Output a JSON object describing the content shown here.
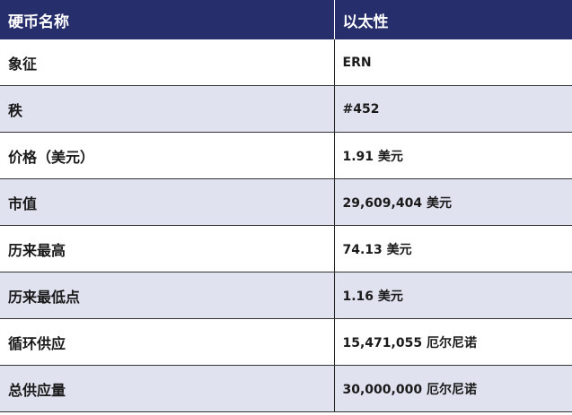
{
  "header": {
    "col1": "硬币名称",
    "col2": "以太性"
  },
  "rows": [
    {
      "label": "象征",
      "value": "ERN"
    },
    {
      "label": "秩",
      "value": "#452"
    },
    {
      "label": "价格（美元）",
      "value": "1.91 美元"
    },
    {
      "label": "市值",
      "value": "29,609,404 美元"
    },
    {
      "label": "历来最高",
      "value": "74.13 美元"
    },
    {
      "label": "历来最低点",
      "value": "1.16 美元"
    },
    {
      "label": "循环供应",
      "value": "15,471,055 厄尔尼诺"
    },
    {
      "label": "总供应量",
      "value": "30,000,000 厄尔尼诺"
    }
  ],
  "colors": {
    "header_bg": "#262e6b",
    "alt_row_bg": "#e0e2ef"
  }
}
